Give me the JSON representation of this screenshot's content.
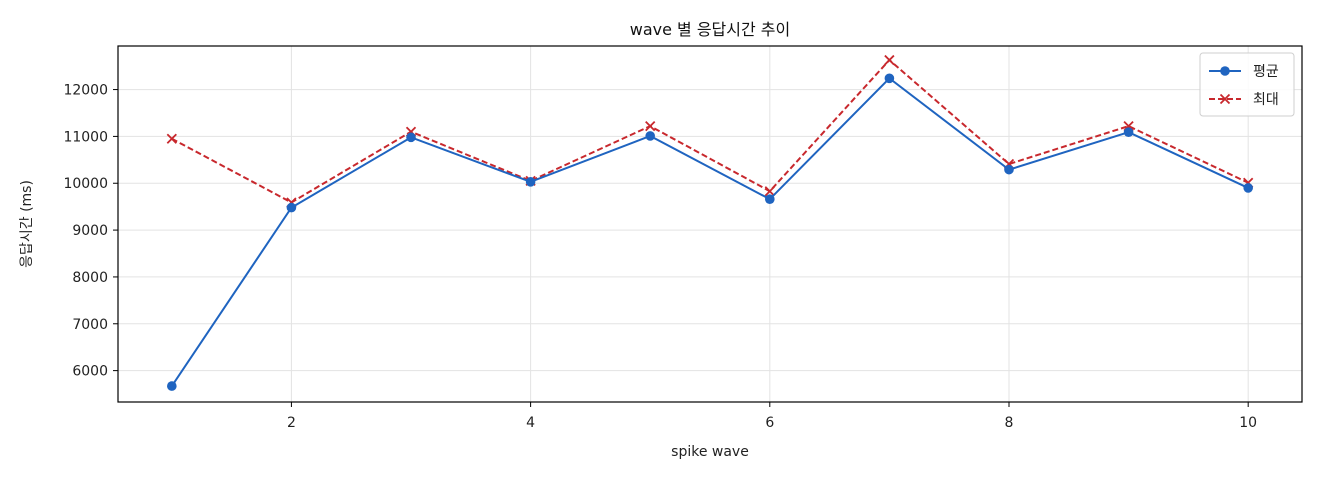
{
  "chart_data": {
    "type": "line",
    "title": "wave 별 응답시간 추이",
    "xlabel": "spike wave",
    "ylabel": "응답시간 (ms)",
    "x": [
      1,
      2,
      3,
      4,
      5,
      6,
      7,
      8,
      9,
      10
    ],
    "xlim": [
      0.55,
      10.45
    ],
    "ylim": [
      5330,
      12930
    ],
    "xticks": [
      2,
      4,
      6,
      8,
      10
    ],
    "yticks": [
      6000,
      7000,
      8000,
      9000,
      10000,
      11000,
      12000
    ],
    "grid": true,
    "legend_position": "top-right",
    "series": [
      {
        "name": "평균",
        "color": "#1f64c0",
        "line_style": "solid",
        "marker": "circle",
        "values": [
          5670,
          9480,
          10980,
          10030,
          11010,
          9660,
          12240,
          10290,
          11090,
          9900
        ]
      },
      {
        "name": "최대",
        "color": "#c8282d",
        "line_style": "dashed",
        "marker": "x",
        "values": [
          10950,
          9590,
          11100,
          10050,
          11220,
          9830,
          12630,
          10410,
          11220,
          10010
        ]
      }
    ]
  }
}
